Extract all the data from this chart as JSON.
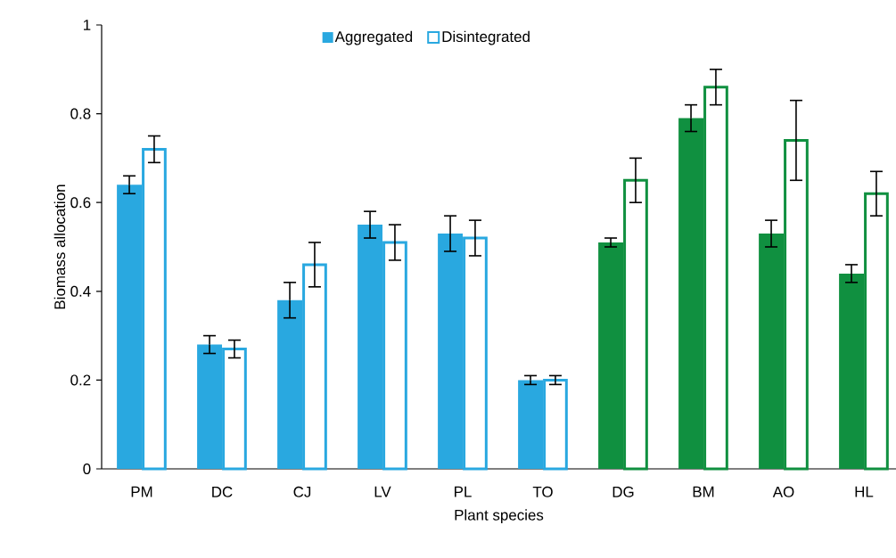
{
  "chart_data": {
    "type": "bar",
    "xlabel": "Plant species",
    "ylabel": "Biomass allocation",
    "categories": [
      "PM",
      "DC",
      "CJ",
      "LV",
      "PL",
      "TO",
      "DG",
      "BM",
      "AO",
      "HL"
    ],
    "series": [
      {
        "name": "Aggregated",
        "colors": [
          "#29a8e0",
          "#29a8e0",
          "#29a8e0",
          "#29a8e0",
          "#29a8e0",
          "#29a8e0",
          "#109040",
          "#109040",
          "#109040",
          "#109040"
        ],
        "values": [
          0.64,
          0.28,
          0.38,
          0.55,
          0.53,
          0.2,
          0.51,
          0.79,
          0.53,
          0.44
        ],
        "errors": [
          0.02,
          0.02,
          0.04,
          0.03,
          0.04,
          0.01,
          0.01,
          0.03,
          0.03,
          0.02
        ]
      },
      {
        "name": "Disintegrated",
        "colors": [
          "#29a8e0",
          "#29a8e0",
          "#29a8e0",
          "#29a8e0",
          "#29a8e0",
          "#29a8e0",
          "#109040",
          "#109040",
          "#109040",
          "#109040"
        ],
        "values": [
          0.72,
          0.27,
          0.46,
          0.51,
          0.52,
          0.2,
          0.65,
          0.86,
          0.74,
          0.62
        ],
        "errors": [
          0.03,
          0.02,
          0.05,
          0.04,
          0.04,
          0.01,
          0.05,
          0.04,
          0.09,
          0.05
        ]
      }
    ],
    "ylim": [
      0,
      1
    ],
    "yticks": [
      0,
      0.2,
      0.4,
      0.6,
      0.8,
      1
    ],
    "legend": "top"
  }
}
